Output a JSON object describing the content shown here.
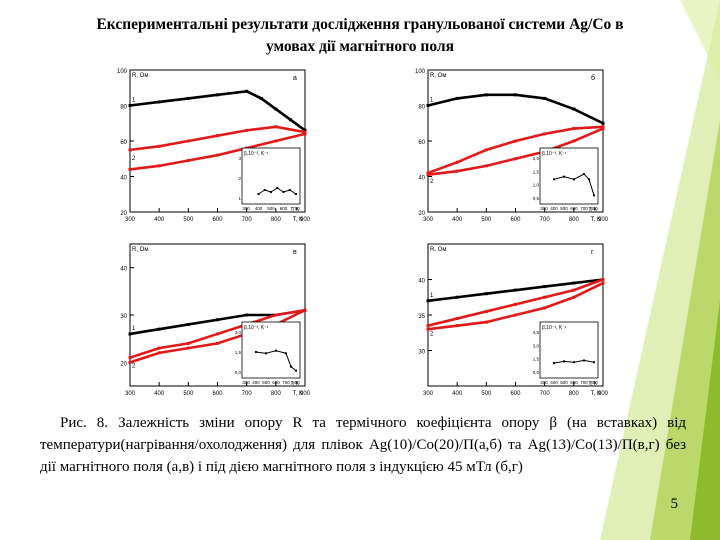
{
  "slide": {
    "title_line1": "Експериментальні результати дослідження гранульованої системи Ag/Co в",
    "title_line2": "умовах дії магнітного поля",
    "caption_a": "Рис. 8. Залежність зміни опору R та термічного коефіцієнта опору ",
    "caption_beta": "β",
    "caption_b": " (на вставках) від температури(нагрівання/охолодження) для плівок Ag(10)/Co(20)/П(а,б) та Ag(13)/Co(13)/П(в,г) без дії магнітного поля (а,в) і під дією магнітного поля з індукцією 45 мТл (б,г)",
    "page_number": "5"
  },
  "colors": {
    "accent_light": "#c6e27a",
    "accent_dark": "#8dbb2c",
    "heating": "#000000",
    "cooling": "#e01a1a"
  },
  "chart_data": [
    {
      "type": "line",
      "panel_label": "а",
      "ylabel": "R, Ом",
      "xlabel": "T, K",
      "xlim": [
        300,
        900
      ],
      "ylim": [
        20,
        100
      ],
      "x_ticks": [
        "300",
        "400",
        "500",
        "600",
        "700",
        "800",
        "900"
      ],
      "y_ticks": [
        "20",
        "40",
        "60",
        "80",
        "100"
      ],
      "curve_labels": [
        "1",
        "2"
      ],
      "series": [
        {
          "name": "1",
          "x": [
            300,
            400,
            500,
            600,
            700,
            750,
            800,
            850,
            900
          ],
          "y": [
            80,
            82,
            84,
            86,
            88,
            84,
            78,
            72,
            66
          ]
        },
        {
          "name": "2",
          "x": [
            300,
            400,
            500,
            600,
            700,
            800,
            900
          ],
          "y": [
            55,
            57,
            60,
            63,
            66,
            68,
            65
          ]
        },
        {
          "name": "2c",
          "x": [
            900,
            800,
            700,
            600,
            500,
            400,
            300
          ],
          "y": [
            64,
            60,
            56,
            52,
            49,
            46,
            44
          ]
        }
      ],
      "inset": {
        "ylabel": "β,10⁻³, K⁻¹",
        "xlabel": "T, K",
        "y_ticks": [
          "1",
          "2",
          "3"
        ],
        "x_ticks": [
          "300",
          "400",
          "500",
          "600",
          "700"
        ],
        "x": [
          400,
          450,
          500,
          550,
          600,
          650,
          700
        ],
        "y": [
          1.2,
          1.4,
          1.3,
          1.5,
          1.3,
          1.4,
          1.2
        ]
      }
    },
    {
      "type": "line",
      "panel_label": "б",
      "ylabel": "R, Ом",
      "xlabel": "T, K",
      "xlim": [
        300,
        900
      ],
      "ylim": [
        20,
        100
      ],
      "x_ticks": [
        "300",
        "400",
        "500",
        "600",
        "700",
        "800",
        "900"
      ],
      "y_ticks": [
        "20",
        "40",
        "60",
        "80",
        "100"
      ],
      "curve_labels": [
        "1",
        "2"
      ],
      "series": [
        {
          "name": "1",
          "x": [
            300,
            400,
            500,
            600,
            700,
            800,
            900
          ],
          "y": [
            80,
            84,
            86,
            86,
            84,
            78,
            70
          ]
        },
        {
          "name": "2",
          "x": [
            300,
            400,
            500,
            600,
            700,
            800,
            900
          ],
          "y": [
            42,
            48,
            55,
            60,
            64,
            67,
            68
          ]
        },
        {
          "name": "2c",
          "x": [
            900,
            800,
            700,
            600,
            500,
            400,
            300
          ],
          "y": [
            67,
            60,
            54,
            50,
            46,
            43,
            41
          ]
        }
      ],
      "inset": {
        "ylabel": "β,10⁻³, K⁻¹",
        "xlabel": "T, K",
        "y_ticks": [
          "0,5",
          "1,0",
          "1,5",
          "2,0"
        ],
        "x_ticks": [
          "300",
          "400",
          "500",
          "600",
          "700",
          "800"
        ],
        "x": [
          400,
          500,
          600,
          700,
          750,
          800
        ],
        "y": [
          1.2,
          1.3,
          1.2,
          1.4,
          1.2,
          0.6
        ]
      }
    },
    {
      "type": "line",
      "panel_label": "в",
      "ylabel": "R, Ом",
      "xlabel": "T, K",
      "xlim": [
        300,
        900
      ],
      "ylim": [
        15,
        45
      ],
      "x_ticks": [
        "300",
        "400",
        "500",
        "600",
        "700",
        "800",
        "900"
      ],
      "y_ticks": [
        "20",
        "30",
        "40"
      ],
      "curve_labels": [
        "1",
        "2"
      ],
      "series": [
        {
          "name": "1",
          "x": [
            300,
            400,
            500,
            600,
            700,
            800,
            900
          ],
          "y": [
            26,
            27,
            28,
            29,
            30,
            30,
            31
          ]
        },
        {
          "name": "2",
          "x": [
            300,
            400,
            500,
            600,
            700,
            800,
            900
          ],
          "y": [
            21,
            23,
            24,
            26,
            28,
            30,
            31
          ]
        },
        {
          "name": "2c",
          "x": [
            900,
            800,
            700,
            600,
            500,
            400,
            300
          ],
          "y": [
            31,
            28,
            26,
            24,
            23,
            22,
            20
          ]
        }
      ],
      "inset": {
        "ylabel": "β,10⁻³, K⁻¹",
        "xlabel": "T, K",
        "y_ticks": [
          "0,0",
          "1,5",
          "3,0"
        ],
        "x_ticks": [
          "300",
          "400",
          "500",
          "600",
          "700",
          "800"
        ],
        "x": [
          400,
          500,
          600,
          700,
          750,
          800
        ],
        "y": [
          1.5,
          1.4,
          1.6,
          1.4,
          0.4,
          0.1
        ]
      }
    },
    {
      "type": "line",
      "panel_label": "г",
      "ylabel": "R, Ом",
      "xlabel": "T, K",
      "xlim": [
        300,
        900
      ],
      "ylim": [
        25,
        45
      ],
      "x_ticks": [
        "300",
        "400",
        "500",
        "600",
        "700",
        "800",
        "900"
      ],
      "y_ticks": [
        "30",
        "35",
        "40"
      ],
      "curve_labels": [
        "1",
        "2"
      ],
      "series": [
        {
          "name": "1",
          "x": [
            300,
            400,
            500,
            600,
            700,
            800,
            900
          ],
          "y": [
            37,
            37.5,
            38,
            38.5,
            39,
            39.5,
            40
          ]
        },
        {
          "name": "2",
          "x": [
            300,
            400,
            500,
            600,
            700,
            800,
            900
          ],
          "y": [
            33.5,
            34.5,
            35.5,
            36.5,
            37.5,
            38.5,
            40
          ]
        },
        {
          "name": "2c",
          "x": [
            900,
            800,
            700,
            600,
            500,
            400,
            300
          ],
          "y": [
            39.5,
            37.5,
            36,
            35,
            34,
            33.5,
            33
          ]
        }
      ],
      "inset": {
        "ylabel": "β,10⁻³, K⁻¹",
        "xlabel": "T, K",
        "y_ticks": [
          "0,0",
          "1,5",
          "3,0",
          "4,5"
        ],
        "x_ticks": [
          "300",
          "400",
          "500",
          "600",
          "700",
          "800"
        ],
        "x": [
          400,
          500,
          600,
          700,
          800
        ],
        "y": [
          1.0,
          1.2,
          1.1,
          1.3,
          1.1
        ]
      }
    }
  ]
}
